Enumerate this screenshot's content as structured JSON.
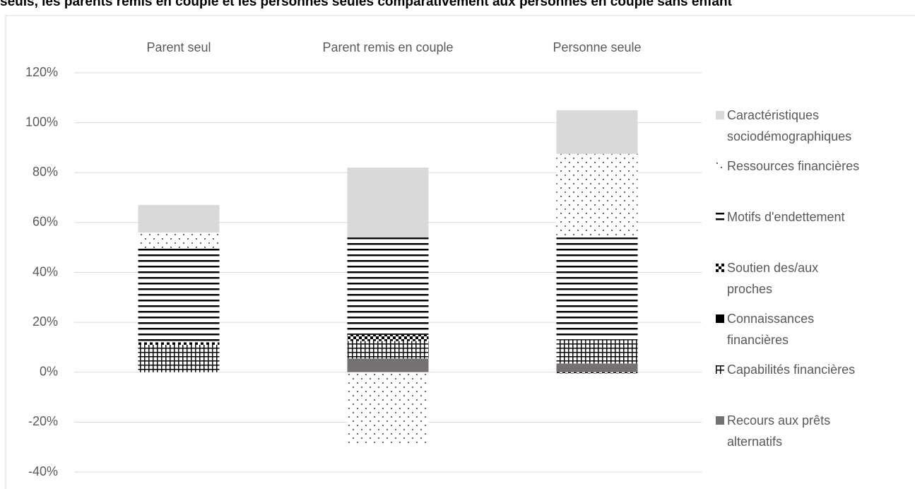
{
  "chart_data": {
    "type": "stacked-bar",
    "title": "seuls, les parents remis en couple et les personnes seules comparativement aux personnes en couple sans enfant",
    "categories": [
      "Parent seul",
      "Parent remis en couple",
      "Personne seule"
    ],
    "series": [
      {
        "name": "Recours aux prêts alternatifs",
        "color": "#767171",
        "pattern": "solid",
        "values": [
          0,
          5.5,
          3.5
        ]
      },
      {
        "name": "Capabilités financières",
        "color": "#000000",
        "pattern": "grid",
        "values": [
          11,
          7,
          9.5
        ]
      },
      {
        "name": "Connaissances financières",
        "color": "#000000",
        "pattern": "solid",
        "values": [
          0,
          0,
          0
        ]
      },
      {
        "name": "Soutien des/aux proches",
        "color": "#000000",
        "pattern": "checker",
        "values": [
          1,
          2.5,
          -0.5
        ]
      },
      {
        "name": "Motifs d'endettement",
        "color": "#000000",
        "pattern": "hlines",
        "values": [
          37.5,
          39,
          41
        ]
      },
      {
        "name": "Ressources financières",
        "color": "#000000",
        "pattern": "dots",
        "values": [
          6.5,
          -28.5,
          33.5
        ]
      },
      {
        "name": "Caractéristiques sociodémographiques",
        "color": "#d9d9d9",
        "pattern": "solid",
        "values": [
          11,
          28,
          17.5
        ]
      }
    ],
    "ylim": [
      -40,
      120
    ],
    "yticks": [
      {
        "value": -40,
        "label": "-40%"
      },
      {
        "value": -20,
        "label": "-20%"
      },
      {
        "value": 0,
        "label": "0%"
      },
      {
        "value": 20,
        "label": "20%"
      },
      {
        "value": 40,
        "label": "40%"
      },
      {
        "value": 60,
        "label": "60%"
      },
      {
        "value": 80,
        "label": "80%"
      },
      {
        "value": 100,
        "label": "100%"
      },
      {
        "value": 120,
        "label": "120%"
      }
    ],
    "grid": true,
    "legend": "right"
  }
}
